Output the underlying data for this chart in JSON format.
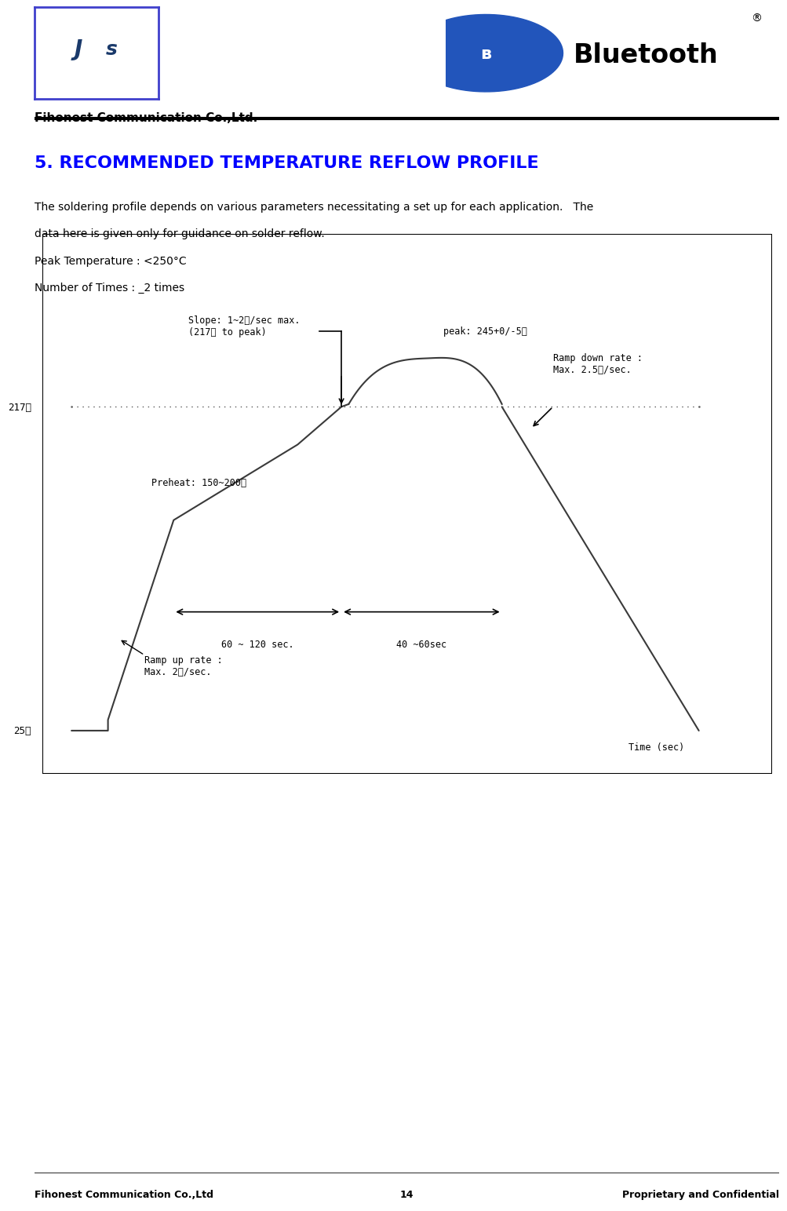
{
  "page_title": "5. RECOMMENDED TEMPERATURE REFLOW PROFILE",
  "title_color": "#0000FF",
  "body_line1": "The soldering profile depends on various parameters necessitating a set up for each application.   The",
  "body_line2": "data here is given only for guidance on solder reflow.",
  "body_line3": "Peak Temperature : <250°C",
  "body_line4": "Number of Times : _2 times",
  "company_name": "Fihonest Communication Co.,Ltd.",
  "footer_company": "Fihonest Communication Co.,Ltd",
  "footer_page": "14",
  "footer_confidential": "Proprietary and Confidential",
  "label_217": "217℃",
  "label_25": "25℃",
  "label_peak": "peak: 245+0/-5℃",
  "label_slope": "Slope: 1~2℃/sec max.\n(217℃ to peak)",
  "label_preheat": "Preheat: 150~200℃",
  "label_rampdown": "Ramp down rate :\nMax. 2.5℃/sec.",
  "label_rampup": "Ramp up rate :\nMax. 2℃/sec.",
  "label_60_120": "60 ~ 120 sec.",
  "label_40_60": "40 ~60sec",
  "label_time": "Time (sec)",
  "profile_color": "#3a3a3a",
  "dotted_color": "#5a5a5a"
}
